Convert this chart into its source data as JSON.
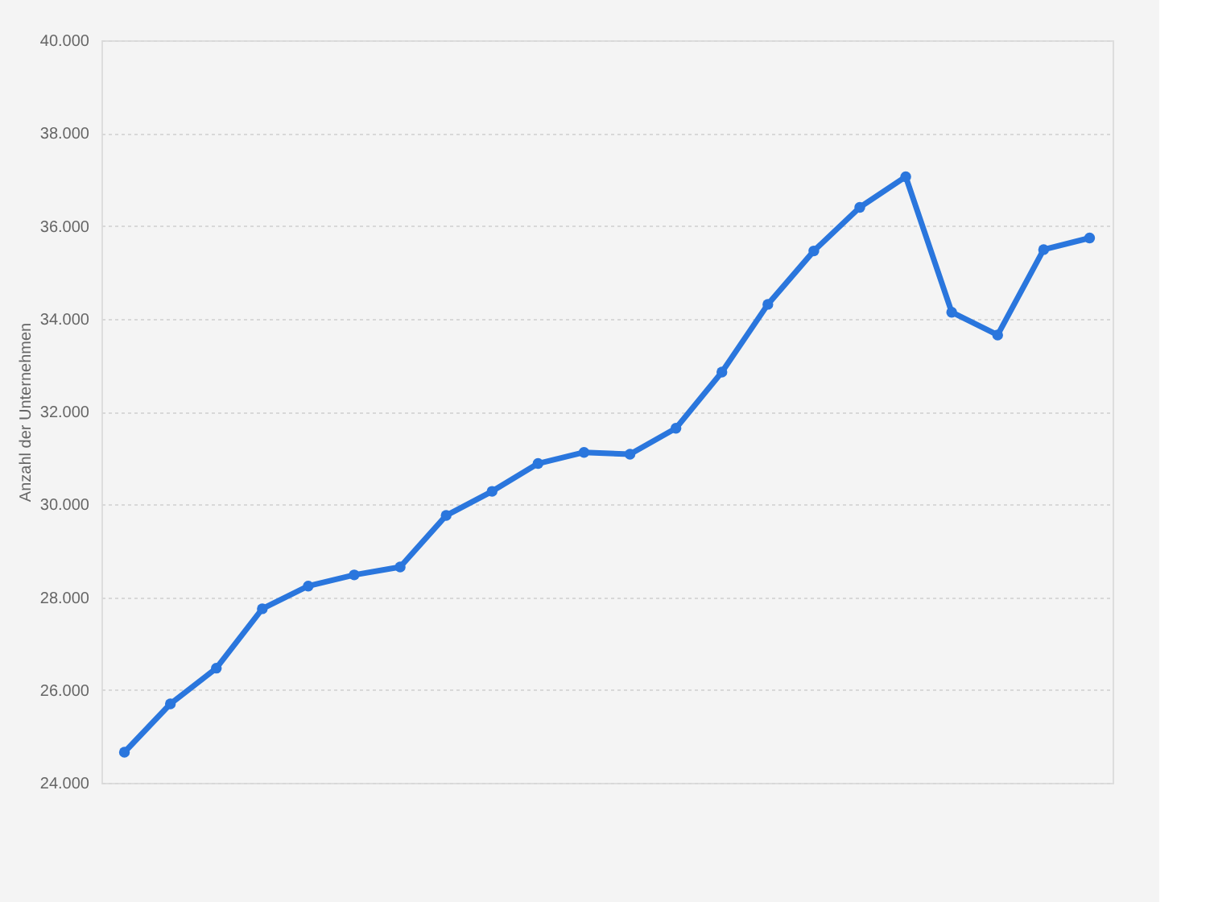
{
  "chart_data": {
    "type": "line",
    "ylabel": "Anzahl der Unternehmen",
    "categories": [
      null,
      null,
      null,
      null,
      null,
      null,
      null,
      null,
      null,
      null,
      null,
      null,
      null,
      null,
      null,
      null,
      null,
      null,
      null,
      null,
      null,
      null
    ],
    "series": [
      {
        "color": "#2a76dd",
        "values": [
          24660,
          25700,
          26470,
          27750,
          28240,
          28480,
          28650,
          29760,
          30280,
          30880,
          31120,
          31080,
          31640,
          32850,
          34310,
          35460,
          36400,
          37060,
          34140,
          33650,
          35490,
          35740
        ]
      }
    ],
    "ylim": [
      24000,
      40000
    ],
    "yticks": [
      {
        "value": 24000,
        "label": "24.000"
      },
      {
        "value": 26000,
        "label": "26.000"
      },
      {
        "value": 28000,
        "label": "28.000"
      },
      {
        "value": 30000,
        "label": "30.000"
      },
      {
        "value": 32000,
        "label": "32.000"
      },
      {
        "value": 34000,
        "label": "34.000"
      },
      {
        "value": 36000,
        "label": "36.000"
      },
      {
        "value": 38000,
        "label": "38.000"
      },
      {
        "value": 40000,
        "label": "40.000"
      }
    ],
    "grid": "y",
    "marker": "circle",
    "line_style": "solid",
    "tick_labels": "y"
  }
}
